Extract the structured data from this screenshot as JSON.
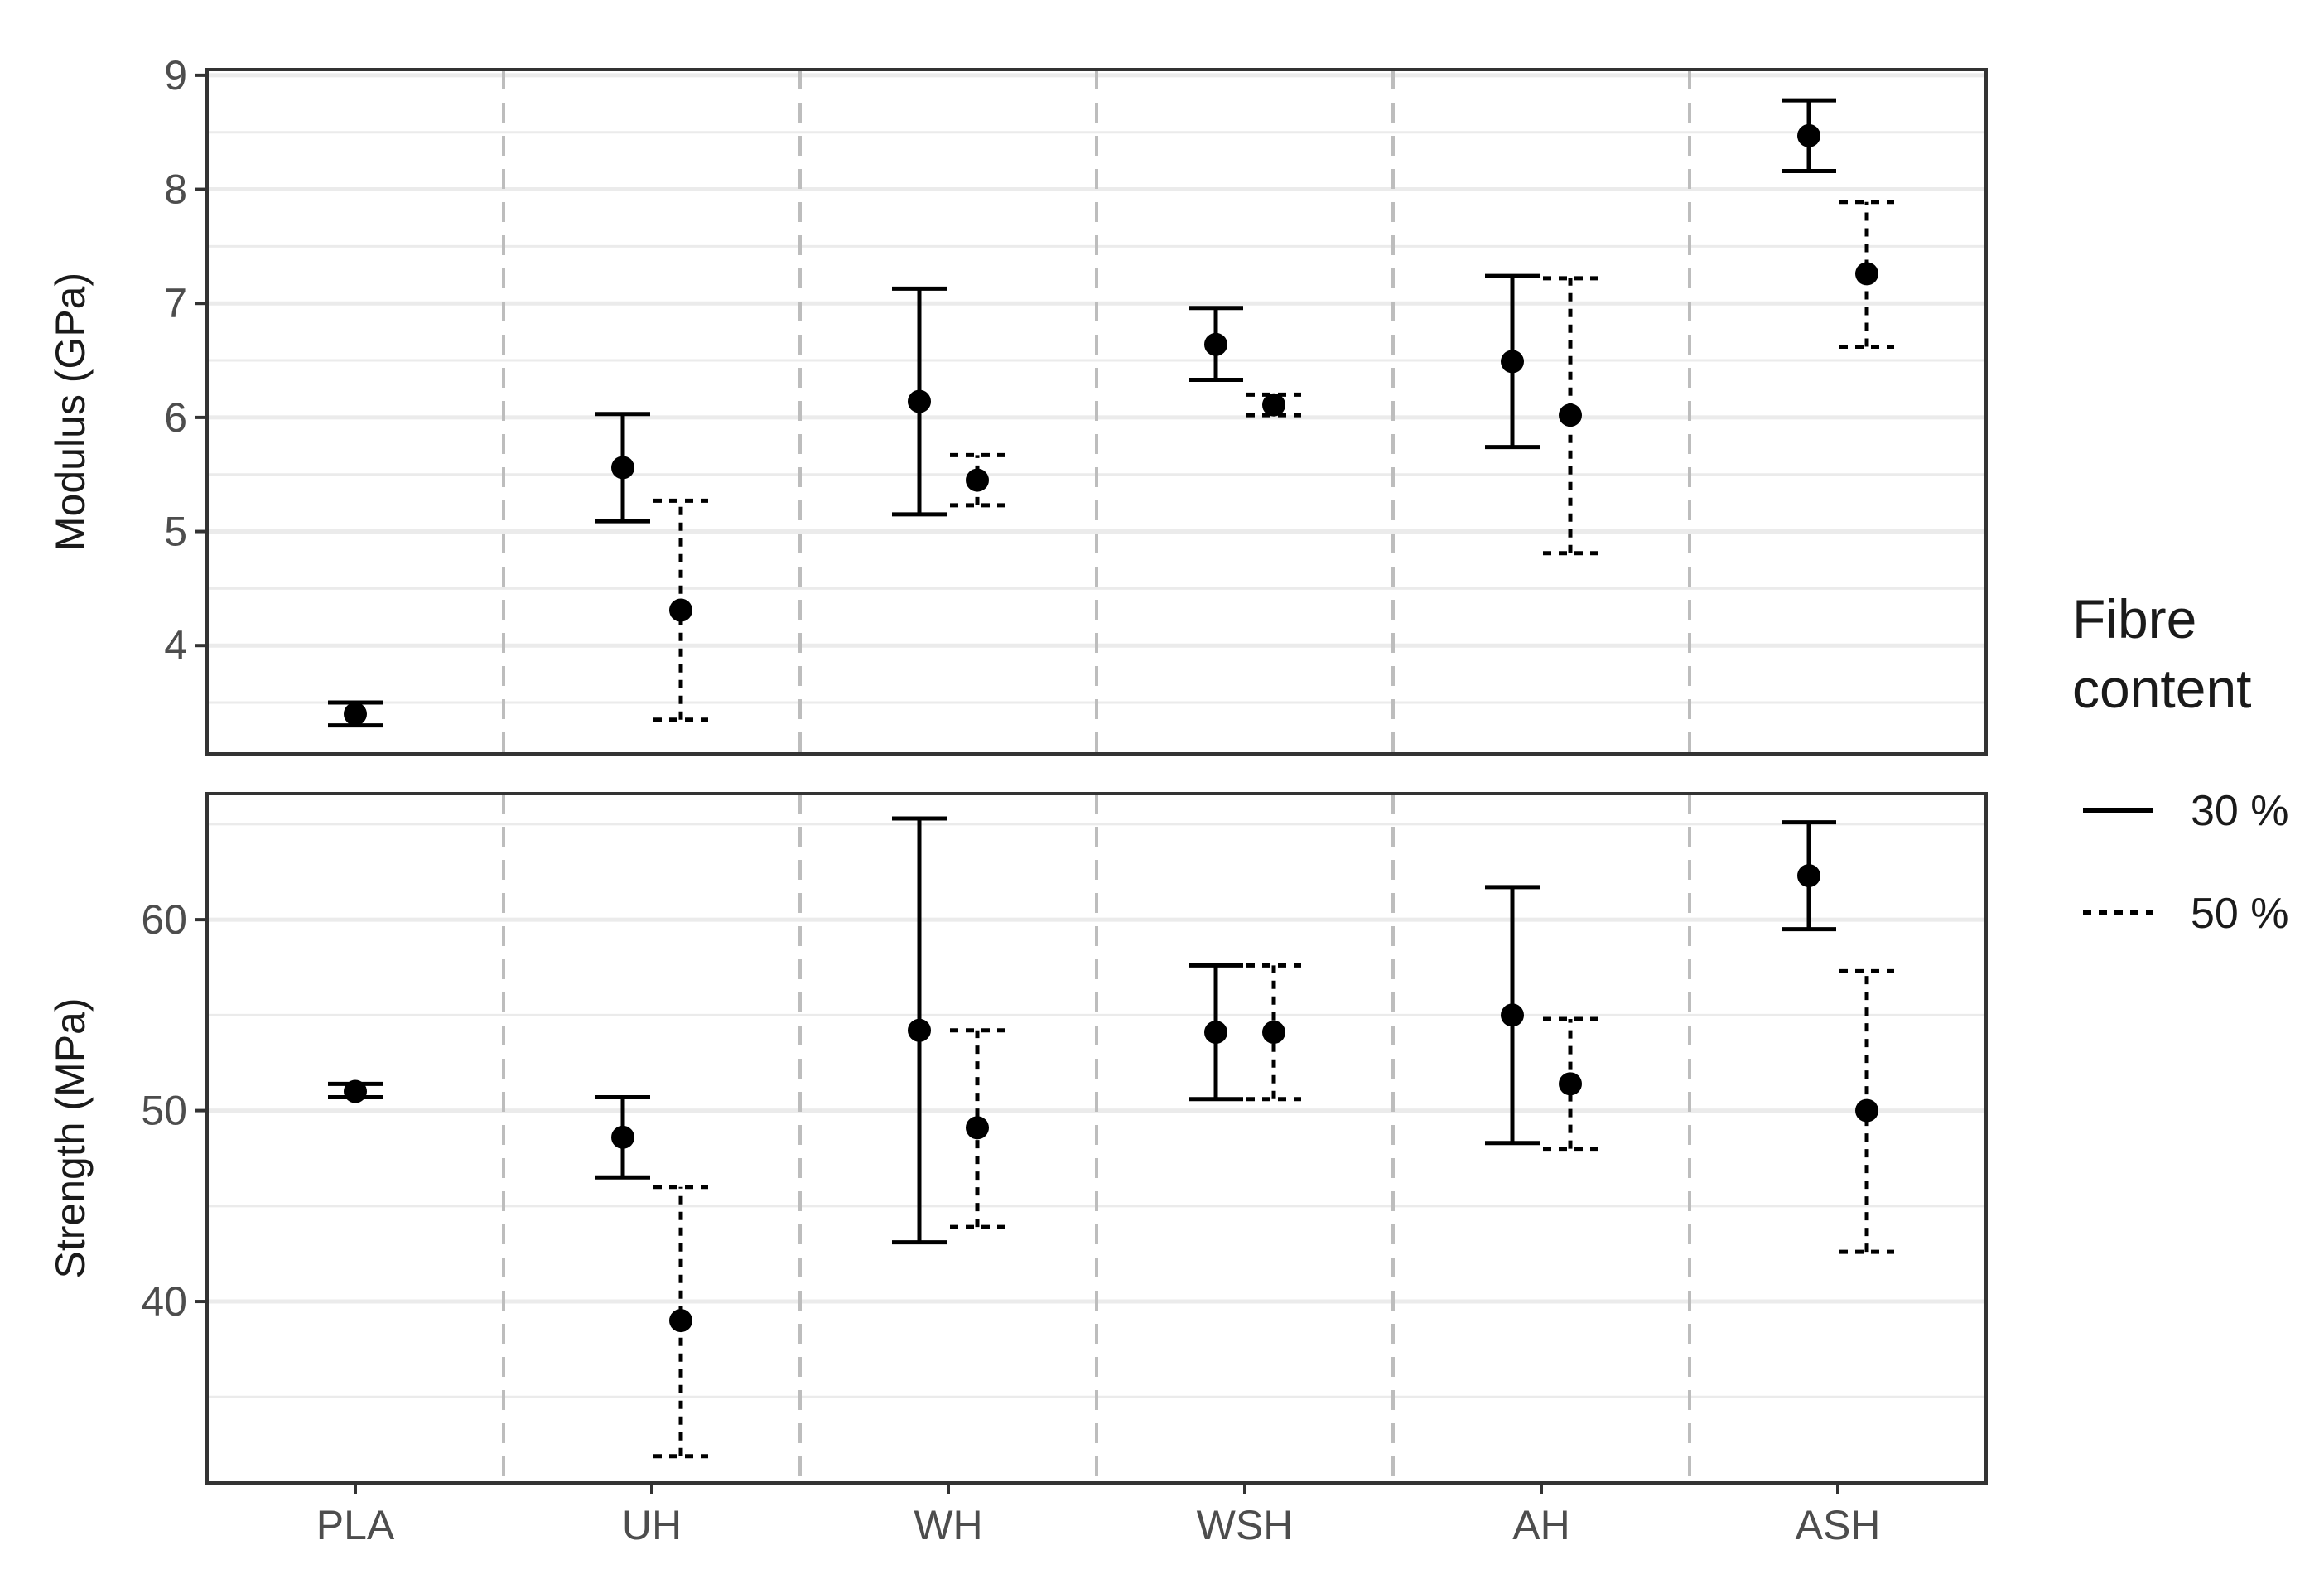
{
  "chart_data": {
    "type": "scatter",
    "subtype": "point-with-error-bars, faceted",
    "categories": [
      "PLA",
      "UH",
      "WH",
      "WSH",
      "AH",
      "ASH"
    ],
    "legend": {
      "title_lines": [
        "Fibre",
        "content"
      ],
      "entries": [
        {
          "label": "30 %",
          "linestyle": "solid"
        },
        {
          "label": "50 %",
          "linestyle": "dotted"
        }
      ],
      "placement": "right"
    },
    "grid": true,
    "panels": [
      {
        "ylabel": "Modulus (GPa)",
        "ylim": [
          3.05,
          9.05
        ],
        "yticks": [
          4,
          5,
          6,
          7,
          8,
          9
        ],
        "series": [
          {
            "name": "30 %",
            "linestyle": "solid",
            "points": [
              {
                "category": "PLA",
                "y": 3.4,
                "ymin": 3.3,
                "ymax": 3.5
              },
              {
                "category": "UH",
                "y": 5.56,
                "ymin": 5.09,
                "ymax": 6.03
              },
              {
                "category": "WH",
                "y": 6.14,
                "ymin": 5.15,
                "ymax": 7.13
              },
              {
                "category": "WSH",
                "y": 6.64,
                "ymin": 6.33,
                "ymax": 6.96
              },
              {
                "category": "AH",
                "y": 6.49,
                "ymin": 5.74,
                "ymax": 7.24
              },
              {
                "category": "ASH",
                "y": 8.47,
                "ymin": 8.16,
                "ymax": 8.78
              }
            ]
          },
          {
            "name": "50 %",
            "linestyle": "dotted",
            "points": [
              {
                "category": "UH",
                "y": 4.31,
                "ymin": 3.35,
                "ymax": 5.27
              },
              {
                "category": "WH",
                "y": 5.45,
                "ymin": 5.23,
                "ymax": 5.67
              },
              {
                "category": "WSH",
                "y": 6.11,
                "ymin": 6.02,
                "ymax": 6.2
              },
              {
                "category": "AH",
                "y": 6.02,
                "ymin": 4.81,
                "ymax": 7.22
              },
              {
                "category": "ASH",
                "y": 7.26,
                "ymin": 6.62,
                "ymax": 7.89
              }
            ]
          }
        ]
      },
      {
        "ylabel": "Strength (MPa)",
        "ylim": [
          30.5,
          66.6
        ],
        "yticks": [
          40,
          50,
          60
        ],
        "series": [
          {
            "name": "30 %",
            "linestyle": "solid",
            "points": [
              {
                "category": "PLA",
                "y": 51.0,
                "ymin": 50.7,
                "ymax": 51.4
              },
              {
                "category": "UH",
                "y": 48.6,
                "ymin": 46.5,
                "ymax": 50.7
              },
              {
                "category": "WH",
                "y": 54.2,
                "ymin": 43.1,
                "ymax": 65.3
              },
              {
                "category": "WSH",
                "y": 54.1,
                "ymin": 50.6,
                "ymax": 57.6
              },
              {
                "category": "AH",
                "y": 55.0,
                "ymin": 48.3,
                "ymax": 61.7
              },
              {
                "category": "ASH",
                "y": 62.3,
                "ymin": 59.5,
                "ymax": 65.1
              }
            ]
          },
          {
            "name": "50 %",
            "linestyle": "dotted",
            "points": [
              {
                "category": "UH",
                "y": 39.0,
                "ymin": 31.9,
                "ymax": 46.0
              },
              {
                "category": "WH",
                "y": 49.1,
                "ymin": 43.9,
                "ymax": 54.2
              },
              {
                "category": "WSH",
                "y": 54.1,
                "ymin": 50.6,
                "ymax": 57.6
              },
              {
                "category": "AH",
                "y": 51.4,
                "ymin": 48.0,
                "ymax": 54.8
              },
              {
                "category": "ASH",
                "y": 50.0,
                "ymin": 42.6,
                "ymax": 57.3
              }
            ]
          }
        ]
      }
    ]
  }
}
